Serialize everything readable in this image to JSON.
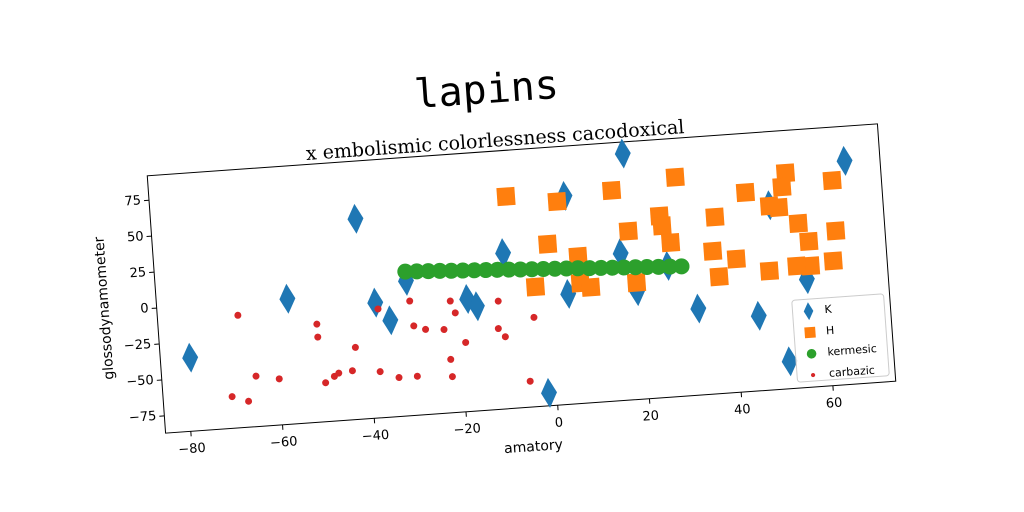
{
  "chart_data": {
    "type": "scatter",
    "title": "lapins",
    "subtitle": "x embolismic colorlessness cacodoxical",
    "xlabel": "amatory",
    "ylabel": "glossodynamometer",
    "xlim": [
      -85.5,
      73.7
    ],
    "ylim": [
      -87,
      92
    ],
    "xticks": [
      {
        "value": -80,
        "label": "−80"
      },
      {
        "value": -60,
        "label": "−60"
      },
      {
        "value": -40,
        "label": "−40"
      },
      {
        "value": -20,
        "label": "−20"
      },
      0,
      20,
      40,
      60
    ],
    "yticks": [
      {
        "value": -75,
        "label": "−75"
      },
      {
        "value": -50,
        "label": "−50"
      },
      {
        "value": -25,
        "label": "−25"
      },
      0,
      25,
      50,
      75
    ],
    "legend": "lower right",
    "series": [
      {
        "name": "K",
        "color": "#1f77b4",
        "marker": "diamond",
        "x": [
          -79,
          -57,
          -41,
          -38,
          -35,
          -31,
          -18,
          -16,
          -9.5,
          -1.7,
          4.7,
          4,
          16,
          18,
          19,
          26,
          32,
          45,
          49,
          51,
          56,
          66
        ],
        "values": [
          -36,
          0,
          52,
          -7,
          -20,
          6.5,
          -9,
          -14.5,
          21,
          -78,
          57.5,
          -10.5,
          15,
          84,
          -12,
          4,
          -27,
          -35,
          41,
          -68,
          -12,
          68
        ]
      },
      {
        "name": "H",
        "color": "#ff7f0e",
        "marker": "square",
        "x": [
          -8,
          3,
          0.3,
          6.7,
          15,
          18,
          25,
          25.4,
          27,
          29,
          6.8,
          -3,
          9,
          19,
          36,
          37,
          37,
          41,
          44,
          49,
          51,
          53,
          52,
          55,
          57,
          57,
          54,
          48,
          63,
          63,
          62
        ],
        "values": [
          60,
          54,
          25,
          15,
          59,
          30,
          39,
          32,
          20,
          65,
          -3.5,
          -4,
          -7,
          -6,
          12,
          35.5,
          -6,
          5.4,
          51,
          40.5,
          39,
          62.5,
          53,
          27,
          14,
          -3,
          -2.4,
          -4.5,
          55,
          20,
          -0.7
        ]
      },
      {
        "name": "kermesic",
        "color": "#2ca02c",
        "marker": "circle",
        "x": [
          -31,
          -28.5,
          -26,
          -23.5,
          -21,
          -18.5,
          -16,
          -13.5,
          -11,
          -8.5,
          -6,
          -3.5,
          -1,
          1.5,
          4,
          6.5,
          9,
          11.5,
          14,
          16.5,
          19,
          21.5,
          24,
          26.5,
          29
        ],
        "values": [
          13.0,
          12.6,
          12.2,
          11.8,
          11.3,
          10.9,
          10.5,
          10.1,
          9.7,
          9.3,
          8.8,
          8.4,
          8.0,
          7.6,
          7.2,
          6.8,
          6.3,
          5.9,
          5.5,
          5.1,
          4.7,
          4.3,
          3.8,
          3.4,
          3.0
        ]
      },
      {
        "name": "carbazic",
        "color": "#d62728",
        "marker": "dot",
        "x": [
          -68,
          -70.5,
          -67,
          -65,
          -60,
          -51,
          -51,
          -50,
          -48,
          -47,
          -44,
          -43,
          -38,
          -37.5,
          -34,
          -30.5,
          -30,
          -30,
          -27.5,
          -23.5,
          -21.7,
          -22.4,
          -20.8,
          -22.5,
          -19,
          -11.3,
          -11.7,
          -10.3,
          -5.6,
          -3.8
        ],
        "values": [
          -9,
          -65,
          -69,
          -52,
          -55,
          -19,
          -28,
          -60,
          -56,
          -54,
          -53,
          -37,
          -55,
          -11.5,
          -60,
          -7.6,
          -25,
          -60,
          -28,
          -29,
          -9.6,
          -62,
          -18,
          -50,
          -39,
          -12,
          -31,
          -37,
          -69,
          -25
        ]
      }
    ]
  }
}
